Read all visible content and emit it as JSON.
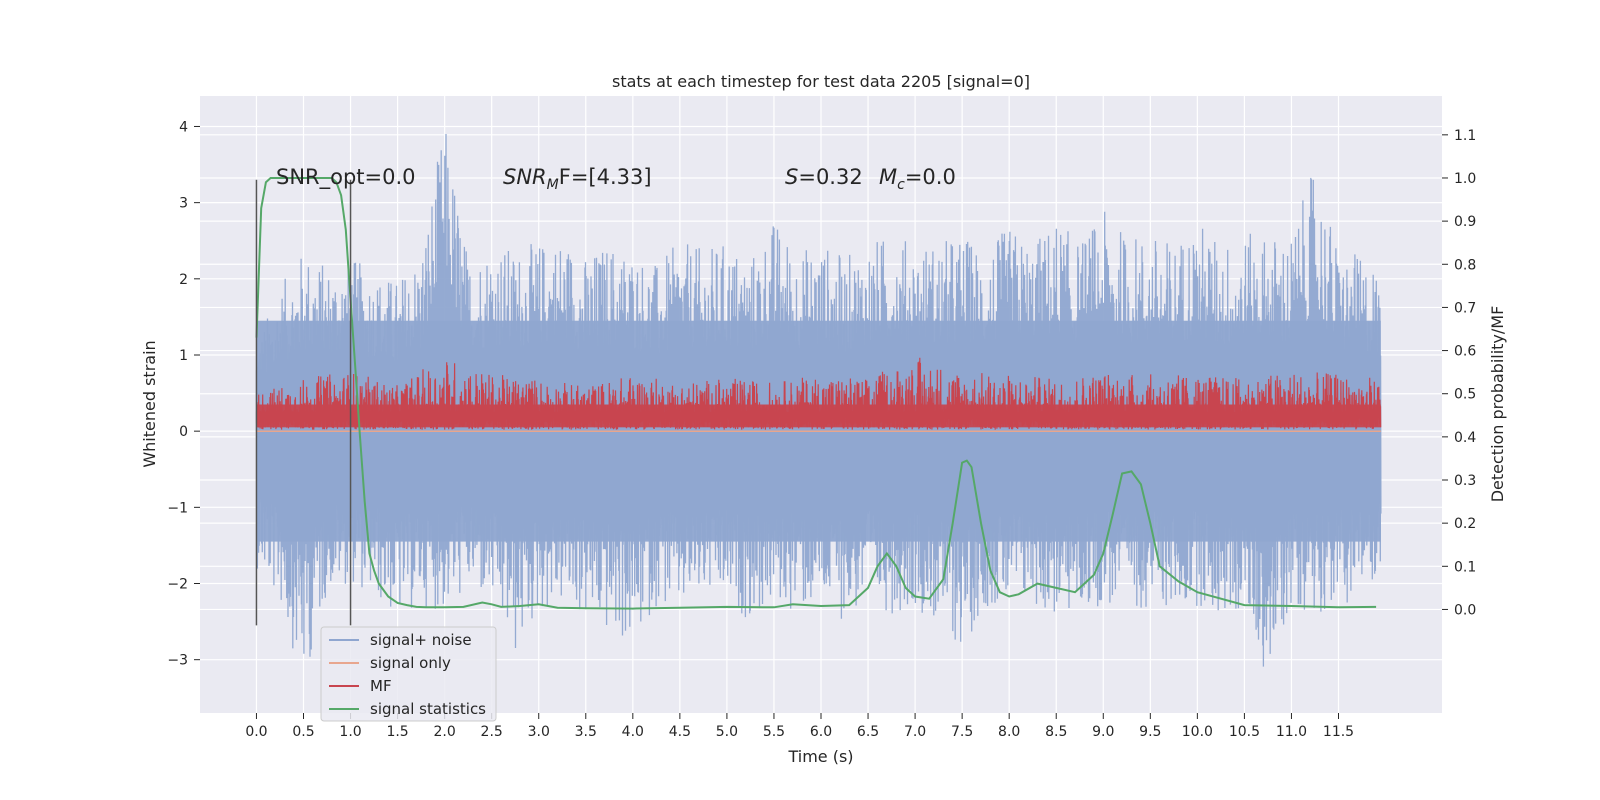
{
  "chart_data": {
    "type": "line",
    "title": "stats at each timestep for test data 2205 [signal=0]",
    "xlabel": "Time (s)",
    "ylabel": "Whitened strain",
    "y2label": "Detection probability/MF",
    "xlim": [
      -0.6,
      12.6
    ],
    "ylim": [
      -3.7,
      4.4
    ],
    "y2lim": [
      -0.24,
      1.19
    ],
    "xticks": [
      0.0,
      0.5,
      1.0,
      1.5,
      2.0,
      2.5,
      3.0,
      3.5,
      4.0,
      4.5,
      5.0,
      5.5,
      6.0,
      6.5,
      7.0,
      7.5,
      8.0,
      8.5,
      9.0,
      9.5,
      10.0,
      10.5,
      11.0,
      11.5
    ],
    "xticklabels": [
      "0.0",
      "0.5",
      "1.0",
      "1.5",
      "2.0",
      "2.5",
      "3.0",
      "3.5",
      "4.0",
      "4.5",
      "5.0",
      "5.5",
      "6.0",
      "6.5",
      "7.0",
      "7.5",
      "8.0",
      "8.5",
      "9.0",
      "9.5",
      "10.0",
      "10.5",
      "11.0",
      "11.5"
    ],
    "yticks": [
      -3,
      -2,
      -1,
      0,
      1,
      2,
      3,
      4
    ],
    "yticklabels": [
      "−3",
      "−2",
      "−1",
      "0",
      "1",
      "2",
      "3",
      "4"
    ],
    "y2ticks": [
      0.0,
      0.1,
      0.2,
      0.3,
      0.4,
      0.5,
      0.6,
      0.7,
      0.8,
      0.9,
      1.0,
      1.1
    ],
    "y2ticklabels": [
      "0.0",
      "0.1",
      "0.2",
      "0.3",
      "0.4",
      "0.5",
      "0.6",
      "0.7",
      "0.8",
      "0.9",
      "1.0",
      "1.1"
    ],
    "grid": true,
    "legend_position": "lower-left",
    "annotations": [
      {
        "base": "SNR_opt=0.0",
        "sub": "",
        "tail": ""
      },
      {
        "base": "SNR",
        "sub": "M",
        "tail": "F=[4.33]",
        "italic": true
      },
      {
        "base": "S",
        "sub": "",
        "tail": "=0.32",
        "italic": true
      },
      {
        "base": "M",
        "sub": "c",
        "tail": "=0.0",
        "italic": true
      }
    ],
    "vlines": [
      {
        "x": 0.0,
        "y_range": [
          -2.55,
          3.3
        ]
      },
      {
        "x": 1.0,
        "y_range": [
          -2.55,
          3.3
        ]
      }
    ],
    "series": [
      {
        "name": "signal+ noise",
        "color": "#8fa6d0",
        "axis": "left",
        "envelope": {
          "x": [
            0.0,
            0.25,
            0.5,
            0.75,
            1.0,
            1.25,
            1.5,
            1.75,
            2.0,
            2.25,
            2.5,
            2.75,
            3.0,
            3.25,
            3.5,
            3.75,
            4.0,
            4.25,
            4.5,
            4.75,
            5.0,
            5.25,
            5.5,
            5.75,
            6.0,
            6.25,
            6.5,
            6.75,
            7.0,
            7.25,
            7.5,
            7.75,
            8.0,
            8.25,
            8.5,
            8.75,
            9.0,
            9.25,
            9.5,
            9.75,
            10.0,
            10.25,
            10.5,
            10.75,
            11.0,
            11.25,
            11.5,
            11.75,
            11.95
          ],
          "upper": [
            1.2,
            1.9,
            2.4,
            2.2,
            2.3,
            2.1,
            2.0,
            2.4,
            4.1,
            2.3,
            2.5,
            2.4,
            2.5,
            2.6,
            2.3,
            2.5,
            2.4,
            2.2,
            2.5,
            2.4,
            2.5,
            2.3,
            2.8,
            2.4,
            2.5,
            2.3,
            2.5,
            2.6,
            2.5,
            2.5,
            2.6,
            2.4,
            2.7,
            2.5,
            2.8,
            2.5,
            2.9,
            2.6,
            2.6,
            2.5,
            2.8,
            2.5,
            2.6,
            2.6,
            2.6,
            3.5,
            2.4,
            2.3,
            2.2
          ],
          "lower": [
            -1.8,
            -2.3,
            -3.35,
            -2.1,
            -2.0,
            -2.2,
            -2.5,
            -2.3,
            -2.4,
            -2.1,
            -2.3,
            -3.0,
            -2.4,
            -2.3,
            -2.5,
            -2.7,
            -2.85,
            -2.3,
            -2.4,
            -2.2,
            -2.3,
            -2.5,
            -2.3,
            -2.4,
            -2.3,
            -2.5,
            -2.3,
            -2.4,
            -2.3,
            -2.6,
            -2.9,
            -2.3,
            -2.4,
            -2.3,
            -2.5,
            -2.4,
            -2.3,
            -2.4,
            -2.3,
            -2.4,
            -2.3,
            -2.5,
            -2.4,
            -3.3,
            -2.3,
            -2.4,
            -2.3,
            -2.2,
            -1.8
          ]
        }
      },
      {
        "name": "signal only",
        "color": "#e8a68e",
        "axis": "left",
        "x": [
          0.0,
          11.95
        ],
        "y": [
          0.0,
          0.0
        ]
      },
      {
        "name": "MF",
        "color": "#c8454f",
        "axis": "left",
        "envelope": {
          "x": [
            0.0,
            0.5,
            1.0,
            1.5,
            2.0,
            2.5,
            3.0,
            3.5,
            4.0,
            4.5,
            5.0,
            5.5,
            6.0,
            6.5,
            7.0,
            7.5,
            8.0,
            8.5,
            9.0,
            9.5,
            10.0,
            10.5,
            11.0,
            11.5,
            11.95
          ],
          "upper": [
            0.5,
            0.7,
            0.8,
            0.6,
            1.0,
            0.75,
            0.7,
            0.6,
            0.75,
            0.65,
            0.7,
            0.65,
            0.75,
            0.7,
            1.0,
            0.8,
            0.75,
            0.7,
            0.8,
            0.75,
            0.75,
            0.7,
            0.8,
            0.75,
            0.7
          ],
          "lower": [
            0.0,
            0.0,
            0.0,
            0.0,
            0.0,
            0.0,
            0.0,
            0.0,
            0.0,
            0.0,
            0.0,
            0.0,
            0.0,
            0.0,
            0.0,
            0.0,
            0.0,
            0.0,
            0.0,
            0.0,
            0.0,
            0.0,
            0.0,
            0.0,
            0.0
          ]
        }
      },
      {
        "name": "signal statistics",
        "color": "#55a868",
        "axis": "right",
        "x": [
          0.0,
          0.05,
          0.1,
          0.15,
          0.2,
          0.3,
          0.4,
          0.5,
          0.6,
          0.7,
          0.8,
          0.85,
          0.9,
          0.95,
          1.0,
          1.05,
          1.1,
          1.15,
          1.2,
          1.25,
          1.3,
          1.4,
          1.5,
          1.6,
          1.7,
          1.8,
          2.0,
          2.2,
          2.4,
          2.5,
          2.6,
          2.8,
          3.0,
          3.2,
          3.5,
          4.0,
          4.5,
          5.0,
          5.5,
          5.7,
          6.0,
          6.3,
          6.5,
          6.6,
          6.7,
          6.8,
          6.9,
          7.0,
          7.15,
          7.3,
          7.4,
          7.5,
          7.55,
          7.6,
          7.7,
          7.8,
          7.9,
          8.0,
          8.1,
          8.3,
          8.5,
          8.7,
          8.9,
          9.0,
          9.1,
          9.2,
          9.3,
          9.4,
          9.5,
          9.6,
          9.8,
          10.0,
          10.5,
          11.0,
          11.5,
          11.9
        ],
        "y": [
          0.63,
          0.93,
          0.99,
          1.0,
          1.0,
          1.0,
          1.0,
          1.0,
          1.0,
          1.0,
          1.0,
          0.99,
          0.96,
          0.88,
          0.72,
          0.56,
          0.4,
          0.25,
          0.13,
          0.09,
          0.06,
          0.03,
          0.015,
          0.01,
          0.006,
          0.005,
          0.005,
          0.006,
          0.016,
          0.012,
          0.006,
          0.008,
          0.012,
          0.004,
          0.003,
          0.002,
          0.004,
          0.006,
          0.005,
          0.012,
          0.008,
          0.01,
          0.05,
          0.1,
          0.13,
          0.1,
          0.05,
          0.03,
          0.025,
          0.07,
          0.2,
          0.34,
          0.345,
          0.33,
          0.2,
          0.09,
          0.04,
          0.03,
          0.035,
          0.06,
          0.05,
          0.04,
          0.08,
          0.13,
          0.22,
          0.315,
          0.32,
          0.29,
          0.2,
          0.1,
          0.065,
          0.04,
          0.01,
          0.008,
          0.005,
          0.006
        ]
      }
    ]
  }
}
